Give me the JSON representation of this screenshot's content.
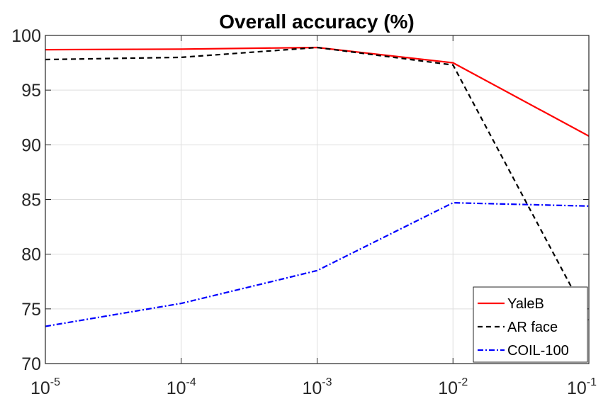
{
  "chart_data": {
    "type": "line",
    "title": "Overall accuracy (%)",
    "xlabel": "",
    "ylabel": "",
    "x_scale": "log",
    "x": [
      1e-05,
      0.0001,
      0.001,
      0.01,
      0.1
    ],
    "x_tick_labels": [
      {
        "base": "10",
        "exp": "-5"
      },
      {
        "base": "10",
        "exp": "-4"
      },
      {
        "base": "10",
        "exp": "-3"
      },
      {
        "base": "10",
        "exp": "-2"
      },
      {
        "base": "10",
        "exp": "-1"
      }
    ],
    "y_ticks": [
      "70",
      "75",
      "80",
      "85",
      "90",
      "95",
      "100"
    ],
    "ylim": [
      70,
      100
    ],
    "grid": true,
    "legend_position": "bottom-right",
    "series": [
      {
        "name": "YaleB",
        "values": [
          98.7,
          98.75,
          98.9,
          97.5,
          90.8
        ],
        "color": "#ff0000",
        "dash": "solid"
      },
      {
        "name": "AR face",
        "values": [
          97.8,
          98.0,
          98.9,
          97.3,
          74.0
        ],
        "color": "#000000",
        "dash": "dashed"
      },
      {
        "name": "COIL-100",
        "values": [
          73.4,
          75.5,
          78.5,
          84.7,
          84.4
        ],
        "color": "#0000ff",
        "dash": "dashdot"
      }
    ]
  }
}
